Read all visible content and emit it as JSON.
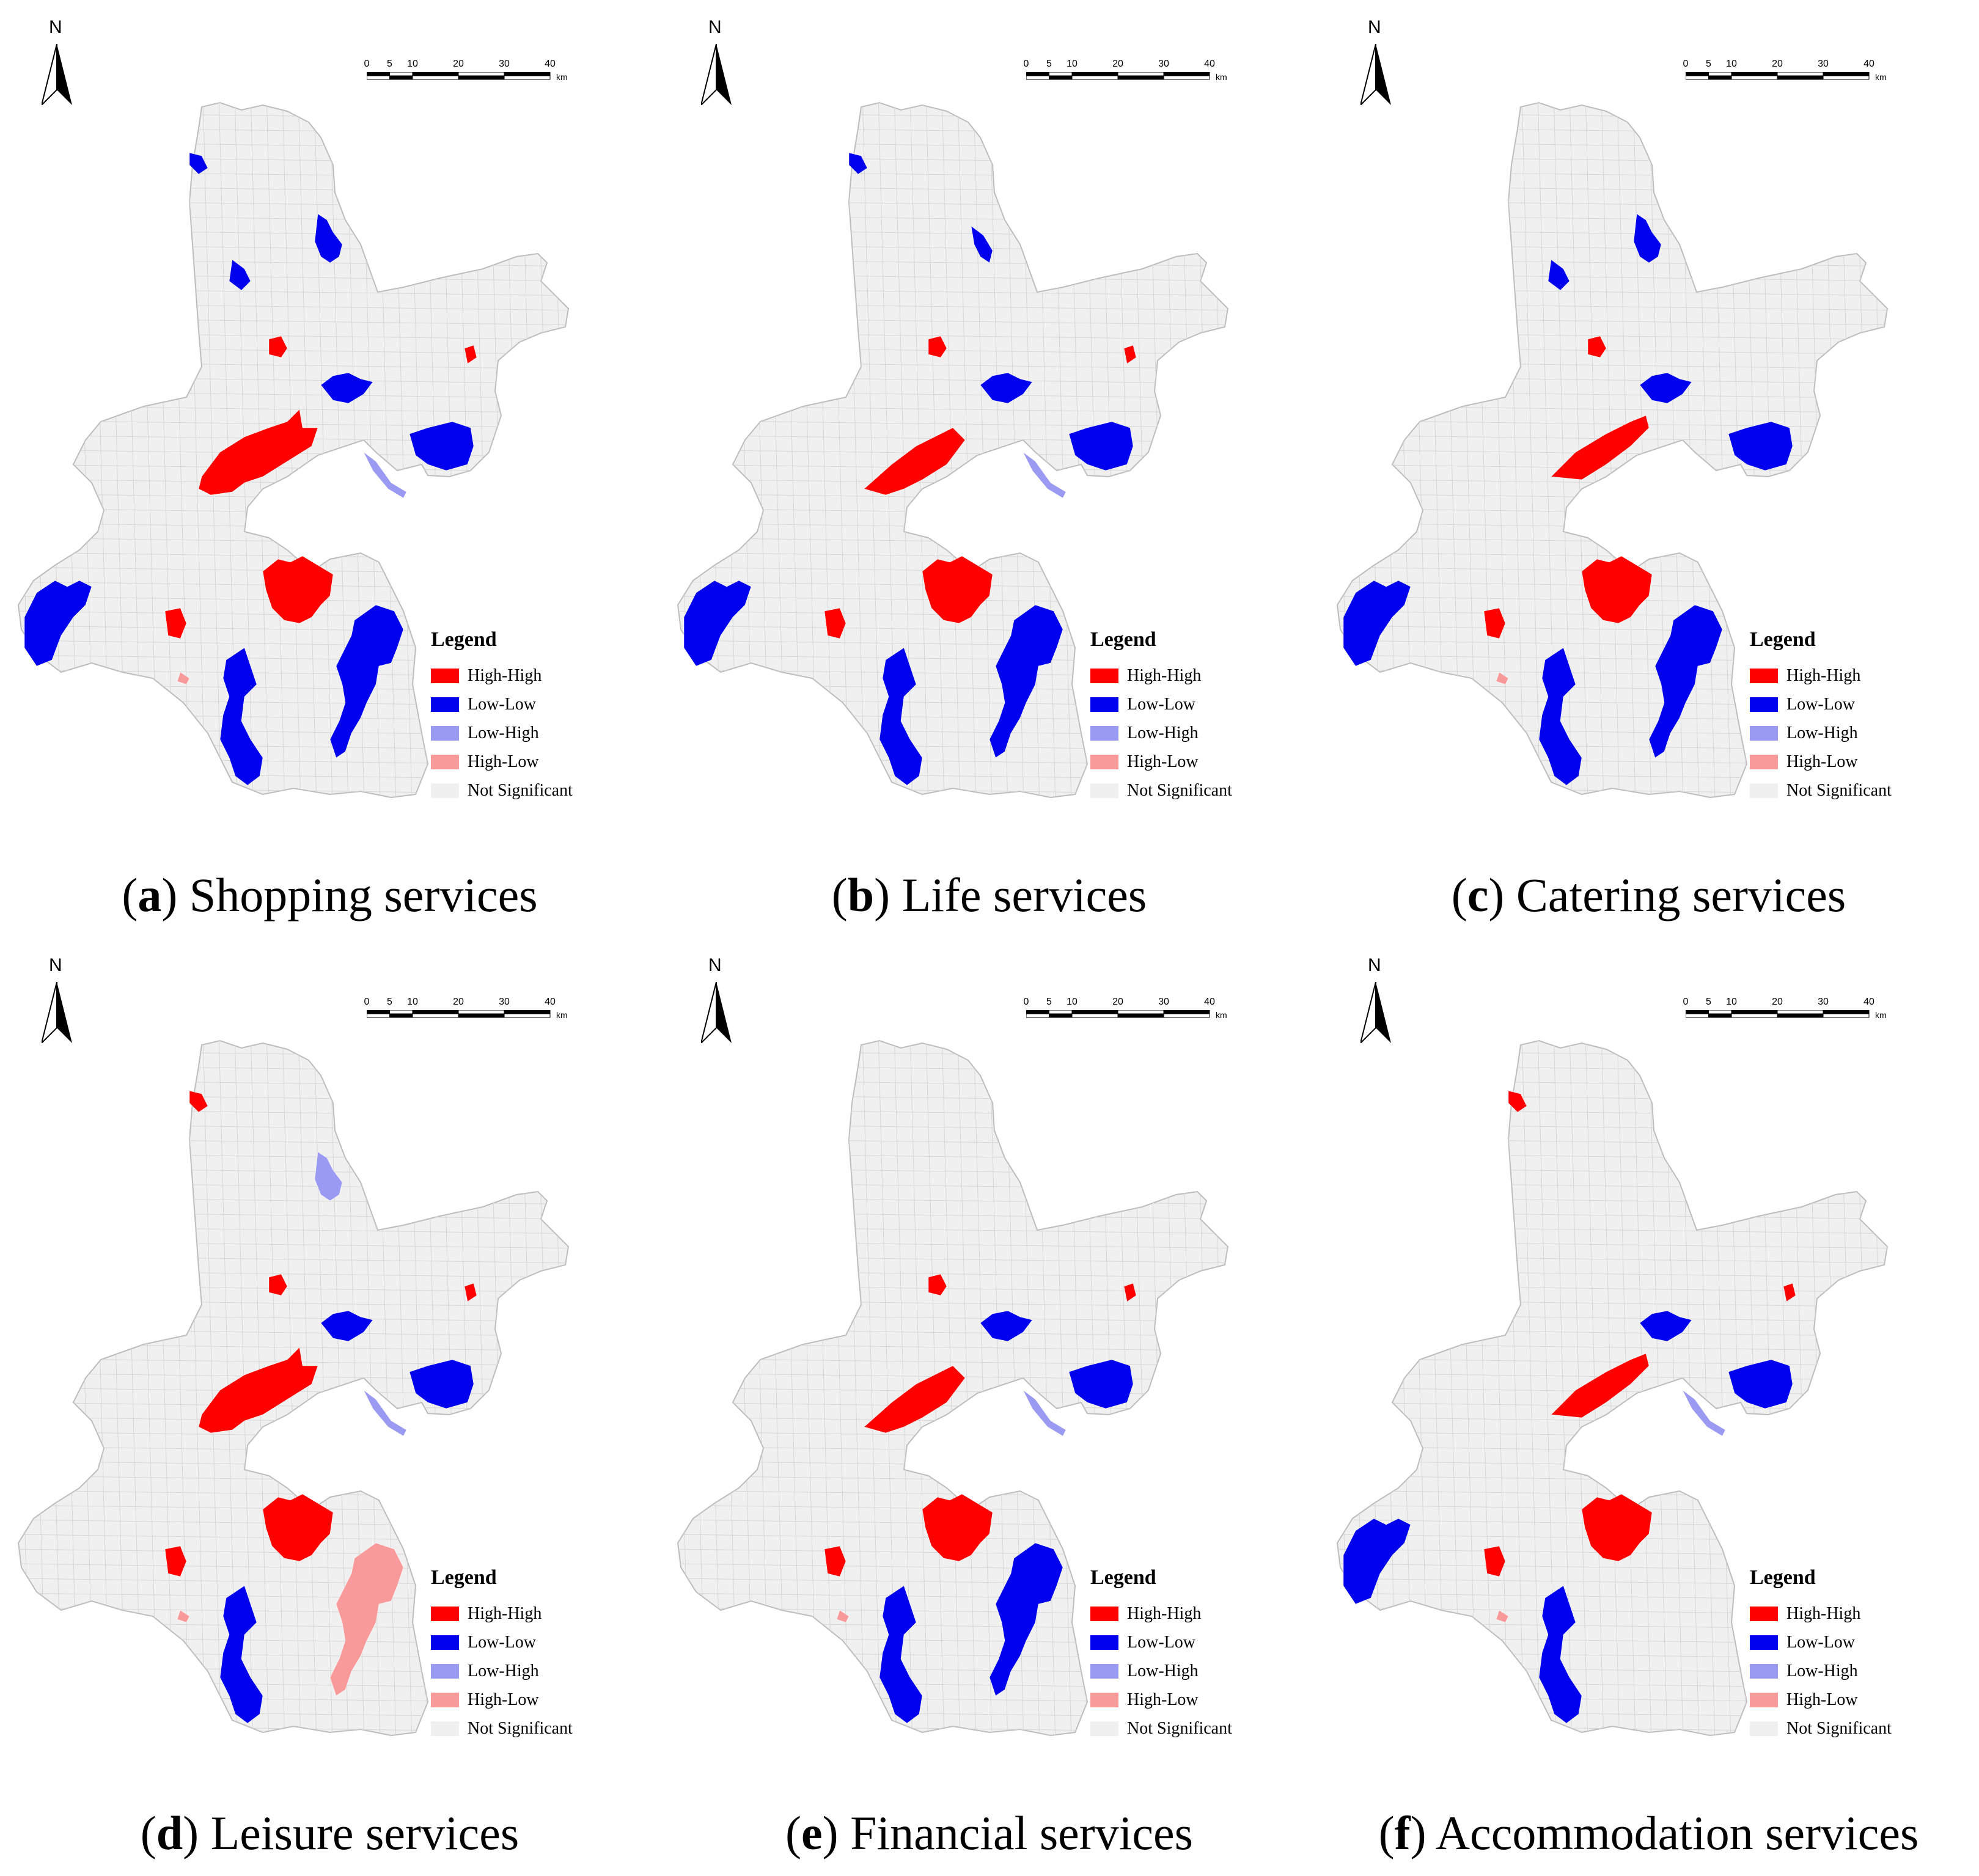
{
  "north_label": "N",
  "scale": {
    "ticks": [
      "0",
      "5",
      "10",
      "20",
      "30",
      "40"
    ],
    "unit": "km"
  },
  "legend": {
    "title": "Legend",
    "items": [
      {
        "label": "High-High",
        "color": "#ff0000"
      },
      {
        "label": "Low-Low",
        "color": "#0000ee"
      },
      {
        "label": "Low-High",
        "color": "#9a9af2"
      },
      {
        "label": "High-Low",
        "color": "#f99a9a"
      },
      {
        "label": "Not Significant",
        "color": "#f0f0f0"
      }
    ]
  },
  "panels": [
    {
      "letter": "a",
      "title": "Shopping services"
    },
    {
      "letter": "b",
      "title": "Life services"
    },
    {
      "letter": "c",
      "title": "Catering services"
    },
    {
      "letter": "d",
      "title": "Leisure services"
    },
    {
      "letter": "e",
      "title": "Financial services"
    },
    {
      "letter": "f",
      "title": "Accommodation services"
    }
  ]
}
